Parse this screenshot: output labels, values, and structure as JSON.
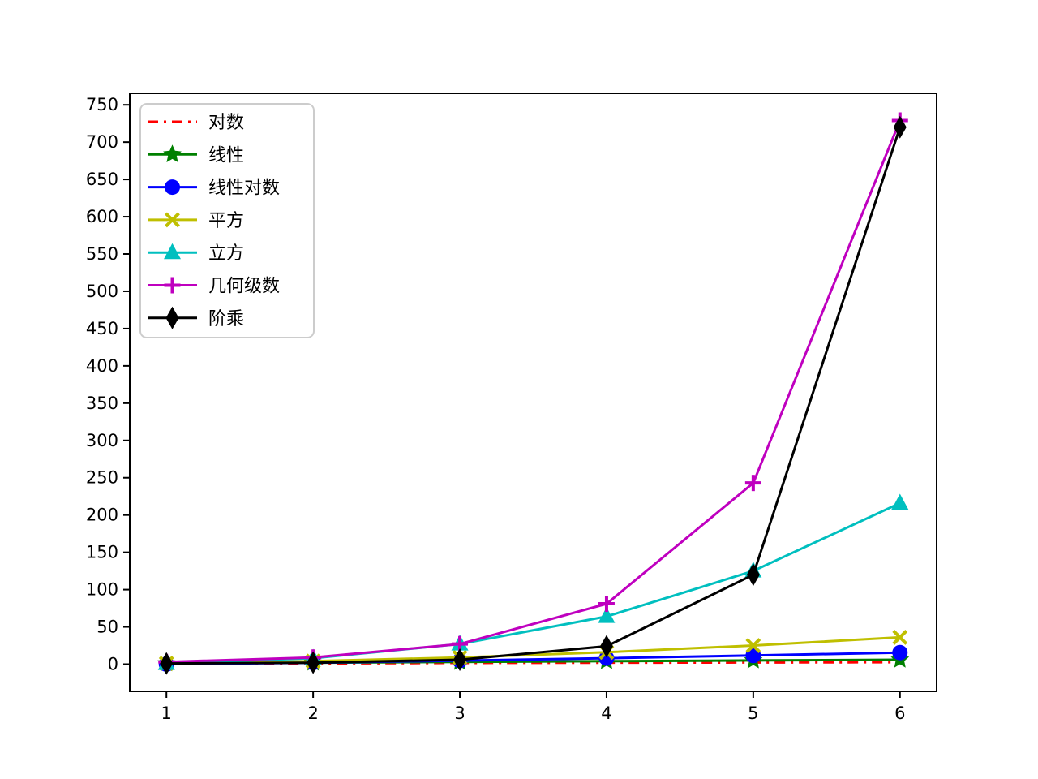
{
  "chart_data": {
    "type": "line",
    "title": "",
    "xlabel": "",
    "ylabel": "",
    "x": [
      1,
      2,
      3,
      4,
      5,
      6
    ],
    "series": [
      {
        "name": "对数",
        "values": [
          0,
          1,
          1.585,
          2,
          2.322,
          2.585
        ],
        "color": "#ff0000",
        "linestyle": "dashdot",
        "marker": "none"
      },
      {
        "name": "线性",
        "values": [
          1,
          2,
          3,
          4,
          5,
          6
        ],
        "color": "#008000",
        "linestyle": "solid",
        "marker": "star"
      },
      {
        "name": "线性对数",
        "values": [
          0,
          2,
          4.755,
          8,
          11.61,
          15.51
        ],
        "color": "#0000ff",
        "linestyle": "solid",
        "marker": "circle"
      },
      {
        "name": "平方",
        "values": [
          1,
          4,
          9,
          16,
          25,
          36
        ],
        "color": "#bfbf00",
        "linestyle": "solid",
        "marker": "x"
      },
      {
        "name": "立方",
        "values": [
          1,
          8,
          27,
          64,
          125,
          216
        ],
        "color": "#00bfbf",
        "linestyle": "solid",
        "marker": "triangle-up"
      },
      {
        "name": "几何级数",
        "values": [
          3,
          9,
          27,
          81,
          243,
          729
        ],
        "color": "#bf00bf",
        "linestyle": "solid",
        "marker": "plus"
      },
      {
        "name": "阶乘",
        "values": [
          1,
          2,
          6,
          24,
          120,
          720
        ],
        "color": "#000000",
        "linestyle": "solid",
        "marker": "thin-diamond"
      }
    ],
    "xticks": [
      "1",
      "2",
      "3",
      "4",
      "5",
      "6"
    ],
    "yticks": [
      "0",
      "50",
      "100",
      "150",
      "200",
      "250",
      "300",
      "350",
      "400",
      "450",
      "500",
      "550",
      "600",
      "650",
      "700",
      "750"
    ],
    "xlim": [
      0.75,
      6.25
    ],
    "ylim": [
      -36.45,
      765.45
    ],
    "grid": false,
    "legend_position": "upper left",
    "axis_color": "#000000",
    "background_color": "#ffffff",
    "legend_border_color": "#cccccc"
  }
}
